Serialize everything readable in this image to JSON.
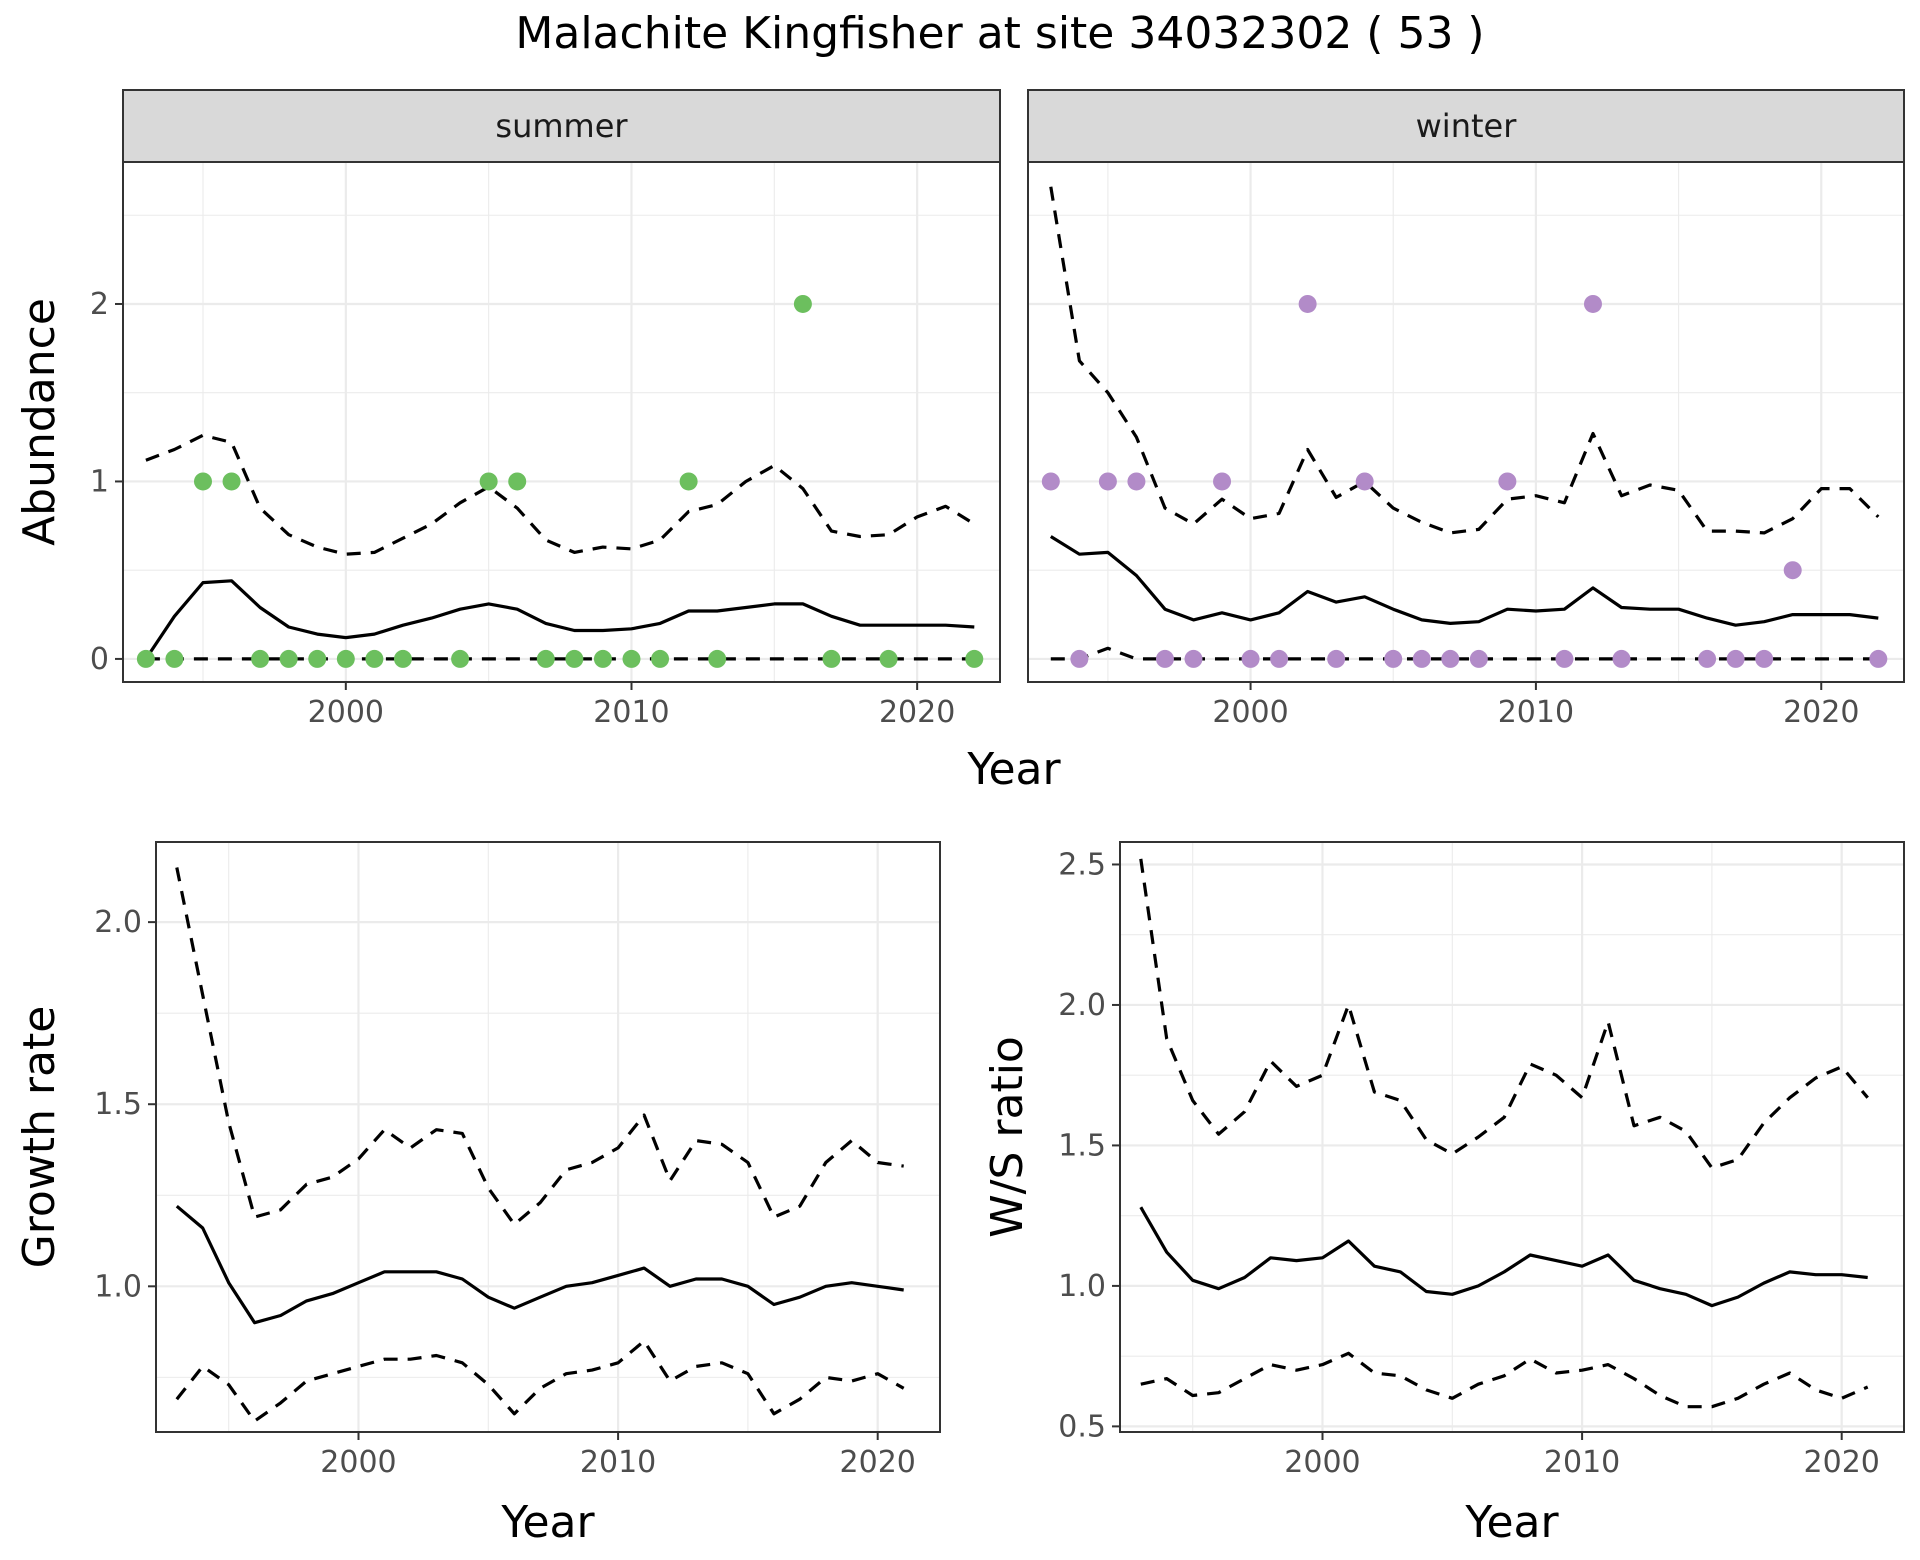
{
  "chart_data": {
    "title": "Malachite Kingfisher at site 34032302 ( 53 )",
    "colors": {
      "summer_points": "#6CBF5E",
      "winter_points": "#B28BC8",
      "line": "#000000",
      "strip_fill": "#D9D9D9",
      "grid_major": "#EBEBEB"
    },
    "abundance": {
      "type": "scatter",
      "xlabel": "Year",
      "ylabel": "Abundance",
      "xlim": [
        1992.2,
        2022.9
      ],
      "ylim": [
        -0.13,
        2.8
      ],
      "x_ticks": [
        2000,
        2010,
        2020
      ],
      "y_ticks": [
        0,
        1,
        2
      ],
      "grid": true,
      "panels": [
        {
          "facet": "summer",
          "points": [
            [
              1993,
              0
            ],
            [
              1994,
              0
            ],
            [
              1995,
              1
            ],
            [
              1996,
              1
            ],
            [
              1997,
              0
            ],
            [
              1998,
              0
            ],
            [
              1999,
              0
            ],
            [
              2000,
              0
            ],
            [
              2001,
              0
            ],
            [
              2002,
              0
            ],
            [
              2004,
              0
            ],
            [
              2005,
              1
            ],
            [
              2006,
              1
            ],
            [
              2007,
              0
            ],
            [
              2008,
              0
            ],
            [
              2009,
              0
            ],
            [
              2010,
              0
            ],
            [
              2011,
              0
            ],
            [
              2012,
              1
            ],
            [
              2013,
              0
            ],
            [
              2016,
              2
            ],
            [
              2017,
              0
            ],
            [
              2019,
              0
            ],
            [
              2022,
              0
            ]
          ],
          "series": [
            {
              "name": "",
              "style": "solid",
              "x": [
                1993,
                1994,
                1995,
                1996,
                1997,
                1998,
                1999,
                2000,
                2001,
                2002,
                2003,
                2004,
                2005,
                2006,
                2007,
                2008,
                2009,
                2010,
                2011,
                2012,
                2013,
                2014,
                2015,
                2016,
                2017,
                2018,
                2019,
                2020,
                2021,
                2022
              ],
              "values": [
                0,
                0.24,
                0.43,
                0.44,
                0.29,
                0.18,
                0.14,
                0.12,
                0.14,
                0.19,
                0.23,
                0.28,
                0.31,
                0.28,
                0.2,
                0.16,
                0.16,
                0.17,
                0.2,
                0.27,
                0.27,
                0.29,
                0.31,
                0.31,
                0.24,
                0.19,
                0.19,
                0.19,
                0.19,
                0.18
              ]
            },
            {
              "name": "",
              "style": "dashed",
              "x": [
                1993,
                1994,
                1995,
                1996,
                1997,
                1998,
                1999,
                2000,
                2001,
                2002,
                2003,
                2004,
                2005,
                2006,
                2007,
                2008,
                2009,
                2010,
                2011,
                2012,
                2013,
                2014,
                2015,
                2016,
                2017,
                2018,
                2019,
                2020,
                2021,
                2022
              ],
              "values": [
                1.12,
                1.18,
                1.26,
                1.22,
                0.85,
                0.7,
                0.63,
                0.59,
                0.6,
                0.68,
                0.76,
                0.88,
                0.97,
                0.85,
                0.67,
                0.6,
                0.63,
                0.62,
                0.67,
                0.83,
                0.87,
                1.0,
                1.09,
                0.96,
                0.72,
                0.69,
                0.7,
                0.8,
                0.86,
                0.76
              ]
            },
            {
              "name": "",
              "style": "dashed",
              "x": [
                1993,
                2022
              ],
              "values": [
                0,
                0
              ]
            }
          ]
        },
        {
          "facet": "winter",
          "points": [
            [
              1993,
              1
            ],
            [
              1994,
              0
            ],
            [
              1995,
              1
            ],
            [
              1996,
              1
            ],
            [
              1997,
              0
            ],
            [
              1998,
              0
            ],
            [
              1999,
              1
            ],
            [
              2000,
              0
            ],
            [
              2001,
              0
            ],
            [
              2002,
              2
            ],
            [
              2003,
              0
            ],
            [
              2004,
              1
            ],
            [
              2005,
              0
            ],
            [
              2006,
              0
            ],
            [
              2007,
              0
            ],
            [
              2008,
              0
            ],
            [
              2009,
              1
            ],
            [
              2011,
              0
            ],
            [
              2012,
              2
            ],
            [
              2013,
              0
            ],
            [
              2016,
              0
            ],
            [
              2017,
              0
            ],
            [
              2018,
              0
            ],
            [
              2019,
              0.5
            ],
            [
              2022,
              0
            ]
          ],
          "series": [
            {
              "name": "",
              "style": "solid",
              "x": [
                1993,
                1994,
                1995,
                1996,
                1997,
                1998,
                1999,
                2000,
                2001,
                2002,
                2003,
                2004,
                2005,
                2006,
                2007,
                2008,
                2009,
                2010,
                2011,
                2012,
                2013,
                2014,
                2015,
                2016,
                2017,
                2018,
                2019,
                2020,
                2021,
                2022
              ],
              "values": [
                0.69,
                0.59,
                0.6,
                0.47,
                0.28,
                0.22,
                0.26,
                0.22,
                0.26,
                0.38,
                0.32,
                0.35,
                0.28,
                0.22,
                0.2,
                0.21,
                0.28,
                0.27,
                0.28,
                0.4,
                0.29,
                0.28,
                0.28,
                0.23,
                0.19,
                0.21,
                0.25,
                0.25,
                0.25,
                0.23
              ]
            },
            {
              "name": "",
              "style": "dashed",
              "x": [
                1993,
                1994,
                1995,
                1996,
                1997,
                1998,
                1999,
                2000,
                2001,
                2002,
                2003,
                2004,
                2005,
                2006,
                2007,
                2008,
                2009,
                2010,
                2011,
                2012,
                2013,
                2014,
                2015,
                2016,
                2017,
                2018,
                2019,
                2020,
                2021,
                2022
              ],
              "values": [
                2.66,
                1.68,
                1.5,
                1.25,
                0.85,
                0.76,
                0.9,
                0.79,
                0.82,
                1.18,
                0.91,
                1.0,
                0.85,
                0.77,
                0.71,
                0.73,
                0.9,
                0.92,
                0.88,
                1.27,
                0.92,
                0.98,
                0.95,
                0.72,
                0.72,
                0.71,
                0.79,
                0.96,
                0.96,
                0.8
              ]
            },
            {
              "name": "",
              "style": "dashed",
              "x": [
                1993,
                1994,
                1995,
                1996,
                1997,
                1998,
                1999,
                2000,
                2001,
                2002,
                2003,
                2004,
                2005,
                2006,
                2007,
                2008,
                2009,
                2010,
                2011,
                2012,
                2013,
                2014,
                2015,
                2016,
                2017,
                2018,
                2019,
                2020,
                2021,
                2022
              ],
              "values": [
                0,
                0,
                0.06,
                0,
                0,
                0,
                0,
                0,
                0,
                0,
                0,
                0,
                0,
                0,
                0,
                0,
                0,
                0,
                0,
                0,
                0,
                0,
                0,
                0,
                0,
                0,
                0,
                0,
                0,
                0
              ]
            }
          ]
        }
      ]
    },
    "growth_rate": {
      "type": "line",
      "xlabel": "Year",
      "ylabel": "Growth rate",
      "xlim": [
        1992.2,
        2022.4
      ],
      "ylim": [
        0.6,
        2.22
      ],
      "x_ticks": [
        2000,
        2010,
        2020
      ],
      "y_ticks": [
        1.0,
        1.5,
        2.0
      ],
      "y_tick_labels": [
        "1.0",
        "1.5",
        "2.0"
      ],
      "grid": true,
      "series": [
        {
          "name": "",
          "style": "solid",
          "x": [
            1993,
            1994,
            1995,
            1996,
            1997,
            1998,
            1999,
            2000,
            2001,
            2002,
            2003,
            2004,
            2005,
            2006,
            2007,
            2008,
            2009,
            2010,
            2011,
            2012,
            2013,
            2014,
            2015,
            2016,
            2017,
            2018,
            2019,
            2020,
            2021
          ],
          "values": [
            1.22,
            1.16,
            1.01,
            0.9,
            0.92,
            0.96,
            0.98,
            1.01,
            1.04,
            1.04,
            1.04,
            1.02,
            0.97,
            0.94,
            0.97,
            1.0,
            1.01,
            1.03,
            1.05,
            1.0,
            1.02,
            1.02,
            1.0,
            0.95,
            0.97,
            1.0,
            1.01,
            1.0,
            0.99
          ]
        },
        {
          "name": "",
          "style": "dashed",
          "x": [
            1993,
            1994,
            1995,
            1996,
            1997,
            1998,
            1999,
            2000,
            2001,
            2002,
            2003,
            2004,
            2005,
            2006,
            2007,
            2008,
            2009,
            2010,
            2011,
            2012,
            2013,
            2014,
            2015,
            2016,
            2017,
            2018,
            2019,
            2020,
            2021
          ],
          "values": [
            2.15,
            1.8,
            1.45,
            1.19,
            1.21,
            1.28,
            1.3,
            1.35,
            1.43,
            1.38,
            1.43,
            1.42,
            1.27,
            1.17,
            1.23,
            1.32,
            1.34,
            1.38,
            1.47,
            1.29,
            1.4,
            1.39,
            1.34,
            1.19,
            1.22,
            1.34,
            1.4,
            1.34,
            1.33
          ]
        },
        {
          "name": "",
          "style": "dashed",
          "x": [
            1993,
            1994,
            1995,
            1996,
            1997,
            1998,
            1999,
            2000,
            2001,
            2002,
            2003,
            2004,
            2005,
            2006,
            2007,
            2008,
            2009,
            2010,
            2011,
            2012,
            2013,
            2014,
            2015,
            2016,
            2017,
            2018,
            2019,
            2020,
            2021
          ],
          "values": [
            0.69,
            0.78,
            0.73,
            0.63,
            0.68,
            0.74,
            0.76,
            0.78,
            0.8,
            0.8,
            0.81,
            0.79,
            0.73,
            0.65,
            0.72,
            0.76,
            0.77,
            0.79,
            0.85,
            0.74,
            0.78,
            0.79,
            0.76,
            0.65,
            0.69,
            0.75,
            0.74,
            0.76,
            0.72
          ]
        }
      ]
    },
    "ws_ratio": {
      "type": "line",
      "xlabel": "Year",
      "ylabel": "W/S ratio",
      "xlim": [
        1992.2,
        2022.4
      ],
      "ylim": [
        0.48,
        2.58
      ],
      "x_ticks": [
        2000,
        2010,
        2020
      ],
      "y_ticks": [
        0.5,
        1.0,
        1.5,
        2.0,
        2.5
      ],
      "y_tick_labels": [
        "0.5",
        "1.0",
        "1.5",
        "2.0",
        "2.5"
      ],
      "grid": true,
      "series": [
        {
          "name": "",
          "style": "solid",
          "x": [
            1993,
            1994,
            1995,
            1996,
            1997,
            1998,
            1999,
            2000,
            2001,
            2002,
            2003,
            2004,
            2005,
            2006,
            2007,
            2008,
            2009,
            2010,
            2011,
            2012,
            2013,
            2014,
            2015,
            2016,
            2017,
            2018,
            2019,
            2020,
            2021
          ],
          "values": [
            1.28,
            1.12,
            1.02,
            0.99,
            1.03,
            1.1,
            1.09,
            1.1,
            1.16,
            1.07,
            1.05,
            0.98,
            0.97,
            1.0,
            1.05,
            1.11,
            1.09,
            1.07,
            1.11,
            1.02,
            0.99,
            0.97,
            0.93,
            0.96,
            1.01,
            1.05,
            1.04,
            1.04,
            1.03
          ]
        },
        {
          "name": "",
          "style": "dashed",
          "x": [
            1993,
            1994,
            1995,
            1996,
            1997,
            1998,
            1999,
            2000,
            2001,
            2002,
            2003,
            2004,
            2005,
            2006,
            2007,
            2008,
            2009,
            2010,
            2011,
            2012,
            2013,
            2014,
            2015,
            2016,
            2017,
            2018,
            2019,
            2020,
            2021
          ],
          "values": [
            2.52,
            1.88,
            1.66,
            1.54,
            1.62,
            1.8,
            1.71,
            1.75,
            2.0,
            1.69,
            1.66,
            1.52,
            1.47,
            1.53,
            1.6,
            1.79,
            1.75,
            1.67,
            1.94,
            1.57,
            1.6,
            1.55,
            1.42,
            1.45,
            1.58,
            1.67,
            1.74,
            1.78,
            1.67
          ]
        },
        {
          "name": "",
          "style": "dashed",
          "x": [
            1993,
            1994,
            1995,
            1996,
            1997,
            1998,
            1999,
            2000,
            2001,
            2002,
            2003,
            2004,
            2005,
            2006,
            2007,
            2008,
            2009,
            2010,
            2011,
            2012,
            2013,
            2014,
            2015,
            2016,
            2017,
            2018,
            2019,
            2020,
            2021
          ],
          "values": [
            0.65,
            0.67,
            0.61,
            0.62,
            0.67,
            0.72,
            0.7,
            0.72,
            0.76,
            0.69,
            0.68,
            0.63,
            0.6,
            0.65,
            0.68,
            0.74,
            0.69,
            0.7,
            0.72,
            0.67,
            0.61,
            0.57,
            0.57,
            0.6,
            0.65,
            0.69,
            0.63,
            0.6,
            0.64
          ]
        }
      ]
    }
  }
}
